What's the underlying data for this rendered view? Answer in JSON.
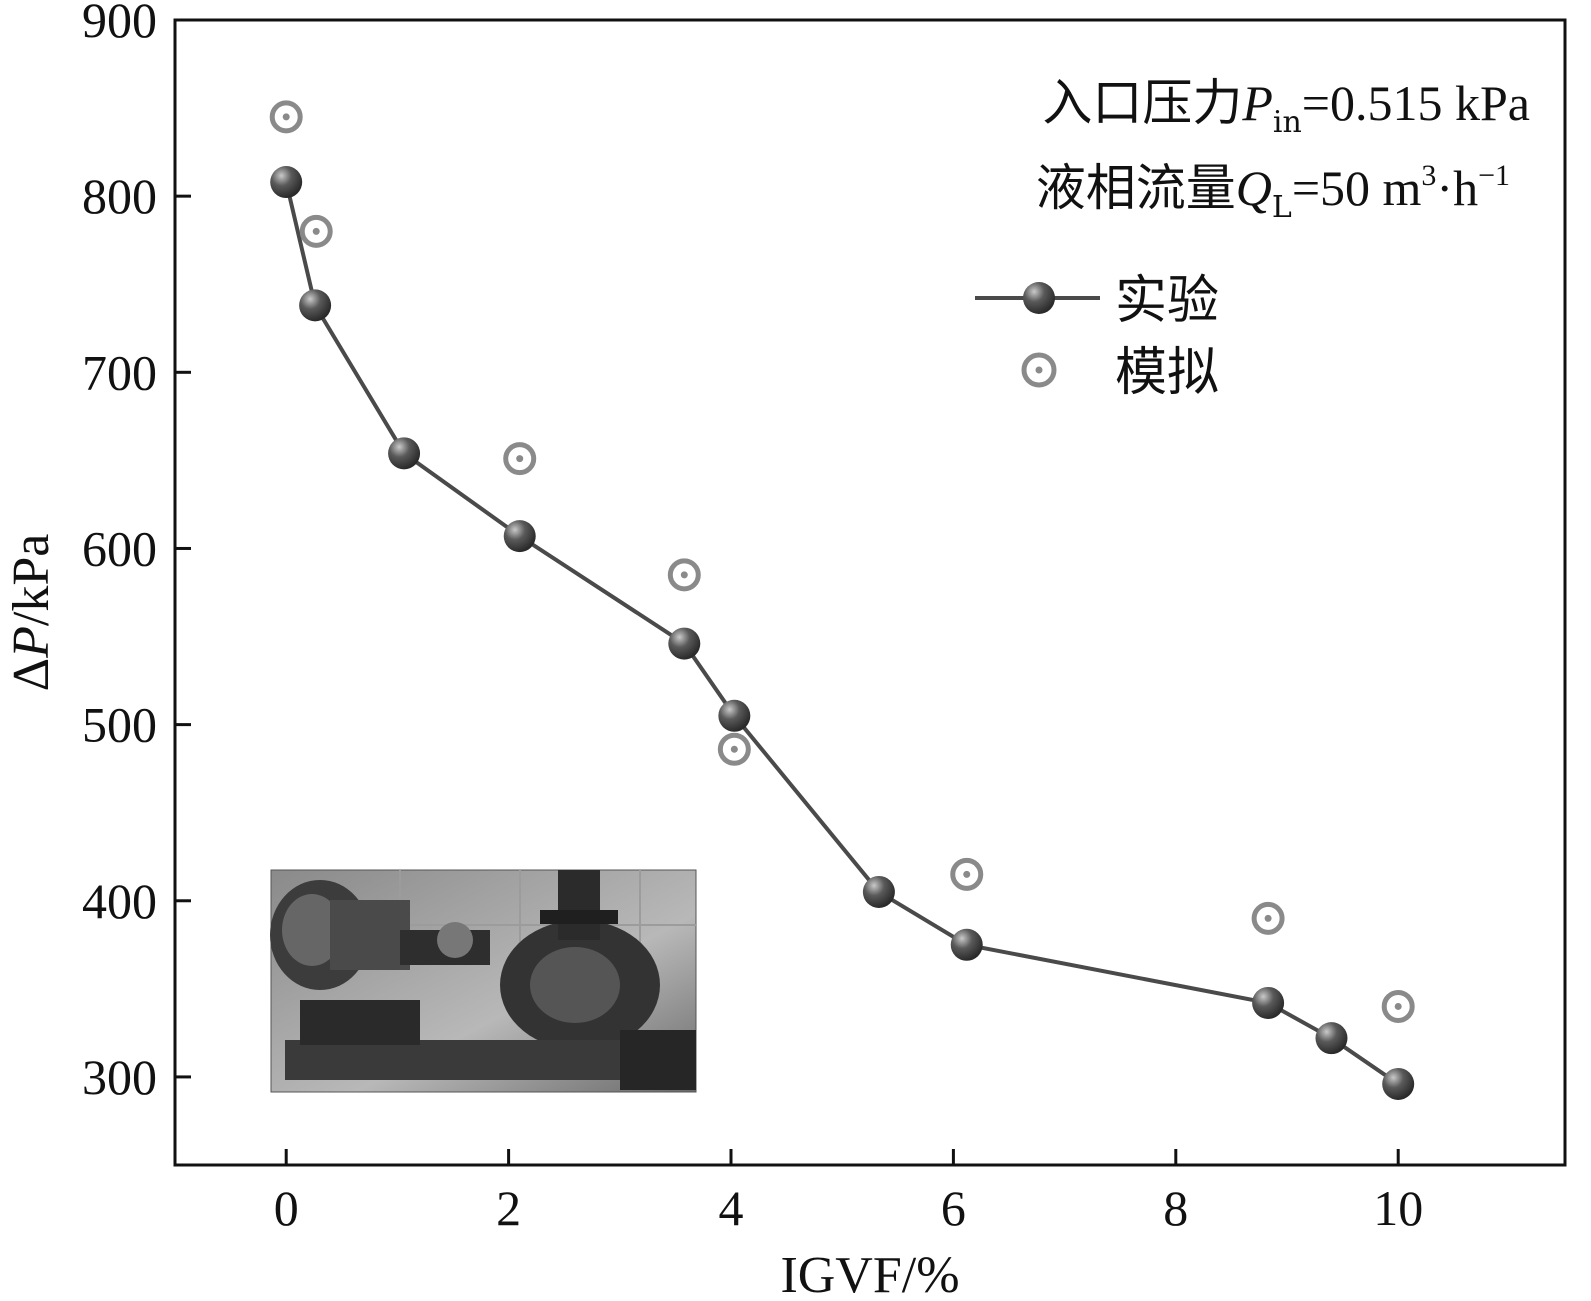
{
  "chart_data": {
    "type": "scatter",
    "xlabel": "IGVF/%",
    "ylabel": "ΔP/kPa",
    "xlim": [
      -1,
      11.5
    ],
    "ylim": [
      250,
      900
    ],
    "xticks": [
      0,
      2,
      4,
      6,
      8,
      10
    ],
    "yticks": [
      300,
      400,
      500,
      600,
      700,
      800,
      900
    ],
    "grid": false,
    "legend_position": "top-right",
    "annotations": [
      {
        "prefix": "入口压力",
        "symbol": "P",
        "subscript": "in",
        "suffix": "=0.515 kPa"
      },
      {
        "prefix": "液相流量",
        "symbol": "Q",
        "subscript": "L",
        "suffix": "=50 m",
        "superscript": "3",
        "suffix2": "·h",
        "superscript2": "−1"
      }
    ],
    "series": [
      {
        "name": "实验",
        "style": "line-marker",
        "color": "#4a4a4a",
        "x": [
          0,
          0.26,
          1.06,
          2.1,
          3.58,
          4.03,
          5.33,
          6.12,
          8.83,
          9.4,
          10.0
        ],
        "y": [
          808,
          738,
          654,
          607,
          546,
          505,
          405,
          375,
          342,
          322,
          296
        ]
      },
      {
        "name": "模拟",
        "style": "open-circle",
        "color": "#7a7a7a",
        "x": [
          0,
          0.27,
          2.1,
          3.58,
          4.03,
          6.12,
          8.83,
          10.0
        ],
        "y": [
          845,
          780,
          651,
          585,
          486,
          415,
          390,
          340
        ]
      }
    ]
  },
  "inset": {
    "description_icon": "pump-photo-icon"
  }
}
